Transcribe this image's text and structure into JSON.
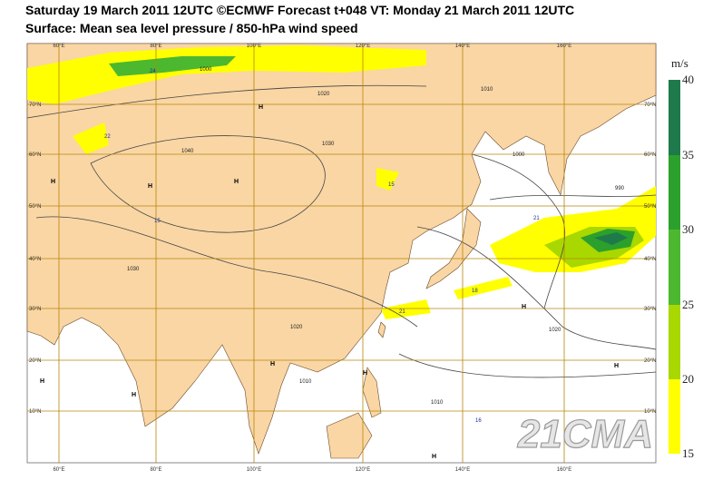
{
  "header": {
    "line1": "Saturday 19 March 2011 12UTC ©ECMWF Forecast t+048 VT: Monday 21 March 2011 12UTC",
    "line2": "Surface: Mean sea level pressure / 850-hPa wind speed"
  },
  "longitudes": [
    "60°E",
    "80°E",
    "100°E",
    "120°E",
    "140°E",
    "160°E"
  ],
  "latitudes": [
    "70°N",
    "60°N",
    "50°N",
    "40°N",
    "30°N",
    "20°N",
    "10°N"
  ],
  "colorbar": {
    "unit": "m/s",
    "labels": [
      "40",
      "35",
      "30",
      "25",
      "20",
      "15"
    ]
  },
  "isobar_labels": [
    "1000",
    "1010",
    "1020",
    "1030",
    "1040",
    "1030",
    "1020",
    "1010",
    "1010",
    "1020",
    "1000",
    "990"
  ],
  "pressure_centers": [
    "H",
    "H",
    "H",
    "H",
    "H",
    "H",
    "H",
    "H",
    "H",
    "H",
    "H"
  ],
  "wind_labels": [
    "24",
    "22",
    "15",
    "15",
    "21",
    "18",
    "21",
    "16"
  ],
  "watermark": "21CMA"
}
